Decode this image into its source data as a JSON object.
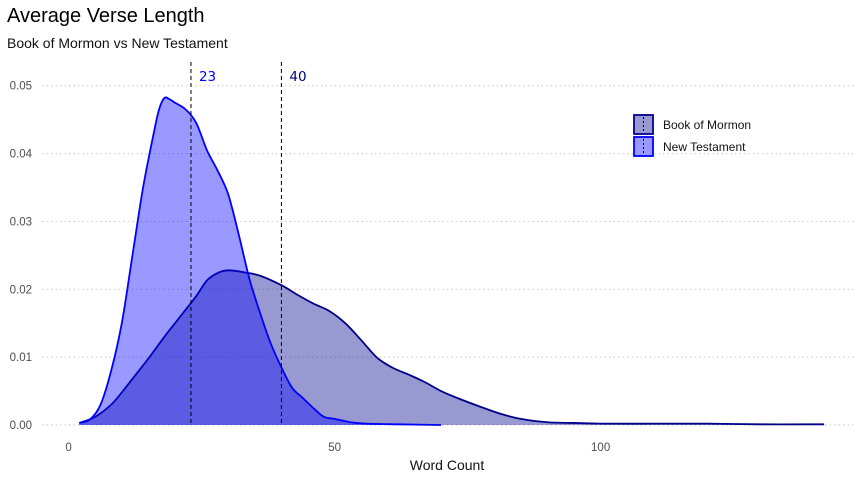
{
  "chart_data": {
    "type": "area",
    "title": "Average Verse Length",
    "subtitle": "Book of Mormon vs New Testament",
    "xlabel": "Word Count",
    "ylabel": "",
    "xlim": [
      -5,
      148
    ],
    "ylim": [
      0,
      0.0535
    ],
    "x_ticks": [
      0,
      50,
      100
    ],
    "y_ticks": [
      0.0,
      0.01,
      0.02,
      0.03,
      0.04,
      0.05
    ],
    "x_tick_labels": [
      "0",
      "50",
      "100"
    ],
    "y_tick_labels": [
      "0.00",
      "0.01",
      "0.02",
      "0.03",
      "0.04",
      "0.05"
    ],
    "grid": "horizontal dotted",
    "legend_position": "top-right",
    "reference_lines": [
      {
        "x": 23,
        "label": "23",
        "color": "#0000ff"
      },
      {
        "x": 40,
        "label": "40",
        "color": "#00008b"
      }
    ],
    "series": [
      {
        "name": "Book of Mormon",
        "fill": "#00008b",
        "stroke": "#00008b",
        "points": [
          [
            2,
            0.0003
          ],
          [
            5,
            0.0012
          ],
          [
            8,
            0.003
          ],
          [
            10,
            0.0048
          ],
          [
            12,
            0.0068
          ],
          [
            15,
            0.0098
          ],
          [
            18,
            0.013
          ],
          [
            20,
            0.015
          ],
          [
            22,
            0.017
          ],
          [
            24,
            0.019
          ],
          [
            26,
            0.0213
          ],
          [
            28,
            0.0224
          ],
          [
            30,
            0.0228
          ],
          [
            33,
            0.0225
          ],
          [
            36,
            0.022
          ],
          [
            40,
            0.0206
          ],
          [
            43,
            0.0192
          ],
          [
            46,
            0.0179
          ],
          [
            49,
            0.0168
          ],
          [
            52,
            0.015
          ],
          [
            55,
            0.0125
          ],
          [
            58,
            0.0099
          ],
          [
            61,
            0.0084
          ],
          [
            64,
            0.0074
          ],
          [
            67,
            0.0063
          ],
          [
            70,
            0.005
          ],
          [
            73,
            0.004
          ],
          [
            77,
            0.0028
          ],
          [
            81,
            0.0017
          ],
          [
            85,
            0.0009
          ],
          [
            90,
            0.0004
          ],
          [
            95,
            0.0003
          ],
          [
            100,
            0.0002
          ],
          [
            110,
            0.0002
          ],
          [
            120,
            0.0002
          ],
          [
            130,
            0.0001
          ],
          [
            140,
            0.0001
          ],
          [
            142,
            0.0001
          ]
        ]
      },
      {
        "name": "New Testament",
        "fill": "#0000ff",
        "stroke": "#0000ff",
        "points": [
          [
            2,
            0.0003
          ],
          [
            4,
            0.0008
          ],
          [
            6,
            0.003
          ],
          [
            8,
            0.008
          ],
          [
            10,
            0.015
          ],
          [
            12,
            0.025
          ],
          [
            14,
            0.035
          ],
          [
            16,
            0.043
          ],
          [
            17,
            0.0465
          ],
          [
            18,
            0.0482
          ],
          [
            19,
            0.048
          ],
          [
            20,
            0.0475
          ],
          [
            22,
            0.0465
          ],
          [
            24,
            0.0445
          ],
          [
            26,
            0.0405
          ],
          [
            28,
            0.0375
          ],
          [
            30,
            0.034
          ],
          [
            32,
            0.028
          ],
          [
            34,
            0.0215
          ],
          [
            36,
            0.0165
          ],
          [
            38,
            0.012
          ],
          [
            40,
            0.0085
          ],
          [
            42,
            0.0055
          ],
          [
            44,
            0.004
          ],
          [
            46,
            0.0025
          ],
          [
            48,
            0.0012
          ],
          [
            50,
            0.0009
          ],
          [
            53,
            0.0004
          ],
          [
            56,
            0.0002
          ],
          [
            62,
            0.0001
          ],
          [
            70,
            0.0
          ]
        ]
      }
    ]
  }
}
